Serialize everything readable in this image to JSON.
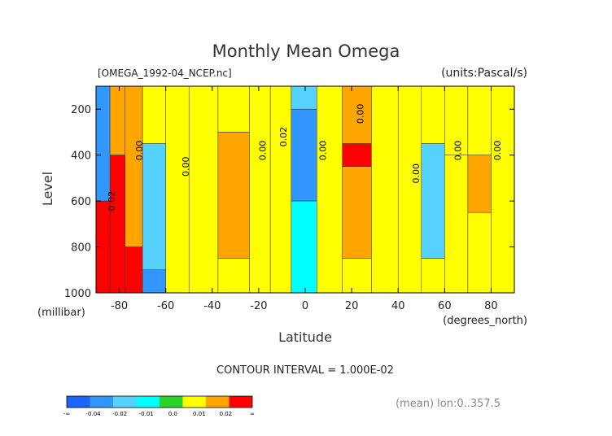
{
  "chart_data": {
    "type": "heatmap",
    "title": "Monthly Mean Omega",
    "file_label": "[OMEGA_1992-04_NCEP.nc]",
    "units_label": "(units:Pascal/s)",
    "xlabel": "Latitude",
    "x_unit_label": "(degrees_north)",
    "ylabel": "Level",
    "y_unit_label": "(millibar)",
    "xlim": [
      -90,
      90
    ],
    "ylim": [
      1000,
      100
    ],
    "x_ticks": [
      "-80",
      "-60",
      "-40",
      "-20",
      "0",
      "20",
      "40",
      "60",
      "80"
    ],
    "y_ticks": [
      "200",
      "400",
      "600",
      "800",
      "1000"
    ],
    "contour_interval_text": "CONTOUR INTERVAL = 1.000E-02",
    "footer_note": "(mean) lon:0..357.5",
    "colorbar": {
      "labels": [
        "-∞",
        "-0.04",
        "-0.02",
        "-0.01",
        "0.0",
        "0.01",
        "0.02",
        "∞"
      ],
      "colors": [
        "#1e64ff",
        "#3296ff",
        "#55d2ff",
        "#00ffff",
        "#28d228",
        "#ffff00",
        "#ffa500",
        "#ff0000"
      ]
    },
    "contour_labels": [
      "0.02",
      "0.00",
      "0.00",
      "0.02",
      "0.00",
      "0.00",
      "0.00",
      "0.00",
      "0.00",
      "0.00"
    ],
    "columns": [
      {
        "lat": -88,
        "level_bands": [
          {
            "from": 100,
            "to": 600,
            "value": -0.03
          },
          {
            "from": 600,
            "to": 1000,
            "value": 0.03
          }
        ]
      },
      {
        "lat": -80,
        "level_bands": [
          {
            "from": 100,
            "to": 400,
            "value": 0.01
          },
          {
            "from": 400,
            "to": 1000,
            "value": 0.03
          }
        ]
      },
      {
        "lat": -75,
        "level_bands": [
          {
            "from": 100,
            "to": 800,
            "value": 0.015
          },
          {
            "from": 800,
            "to": 1000,
            "value": 0.03
          }
        ]
      },
      {
        "lat": -65,
        "level_bands": [
          {
            "from": 100,
            "to": 350,
            "value": 0.0
          },
          {
            "from": 350,
            "to": 900,
            "value": -0.015
          },
          {
            "from": 900,
            "to": 1000,
            "value": -0.025
          }
        ]
      },
      {
        "lat": -55,
        "level_bands": [
          {
            "from": 100,
            "to": 1000,
            "value": 0.0
          }
        ]
      },
      {
        "lat": -45,
        "level_bands": [
          {
            "from": 100,
            "to": 1000,
            "value": 0.005
          }
        ]
      },
      {
        "lat": -30,
        "level_bands": [
          {
            "from": 100,
            "to": 300,
            "value": 0.005
          },
          {
            "from": 300,
            "to": 850,
            "value": 0.015
          },
          {
            "from": 850,
            "to": 1000,
            "value": 0.005
          }
        ]
      },
      {
        "lat": -18,
        "level_bands": [
          {
            "from": 100,
            "to": 1000,
            "value": 0.005
          }
        ]
      },
      {
        "lat": -12,
        "level_bands": [
          {
            "from": 100,
            "to": 1000,
            "value": 0.0
          }
        ]
      },
      {
        "lat": 0,
        "level_bands": [
          {
            "from": 100,
            "to": 200,
            "value": -0.015
          },
          {
            "from": 200,
            "to": 600,
            "value": -0.025
          },
          {
            "from": 600,
            "to": 1000,
            "value": -0.005
          }
        ]
      },
      {
        "lat": 10,
        "level_bands": [
          {
            "from": 100,
            "to": 1000,
            "value": 0.0
          }
        ]
      },
      {
        "lat": 22,
        "level_bands": [
          {
            "from": 100,
            "to": 350,
            "value": 0.015
          },
          {
            "from": 350,
            "to": 450,
            "value": 0.03
          },
          {
            "from": 450,
            "to": 850,
            "value": 0.015
          },
          {
            "from": 850,
            "to": 1000,
            "value": 0.005
          }
        ]
      },
      {
        "lat": 35,
        "level_bands": [
          {
            "from": 100,
            "to": 1000,
            "value": 0.005
          }
        ]
      },
      {
        "lat": 45,
        "level_bands": [
          {
            "from": 100,
            "to": 1000,
            "value": 0.0
          }
        ]
      },
      {
        "lat": 55,
        "level_bands": [
          {
            "from": 100,
            "to": 350,
            "value": 0.0
          },
          {
            "from": 350,
            "to": 850,
            "value": -0.015
          },
          {
            "from": 850,
            "to": 1000,
            "value": 0.0
          }
        ]
      },
      {
        "lat": 65,
        "level_bands": [
          {
            "from": 100,
            "to": 400,
            "value": 0.0
          },
          {
            "from": 400,
            "to": 1000,
            "value": 0.005
          }
        ]
      },
      {
        "lat": 75,
        "level_bands": [
          {
            "from": 100,
            "to": 400,
            "value": 0.005
          },
          {
            "from": 400,
            "to": 650,
            "value": 0.015
          },
          {
            "from": 650,
            "to": 1000,
            "value": 0.005
          }
        ]
      },
      {
        "lat": 85,
        "level_bands": [
          {
            "from": 100,
            "to": 1000,
            "value": 0.0
          }
        ]
      }
    ]
  }
}
